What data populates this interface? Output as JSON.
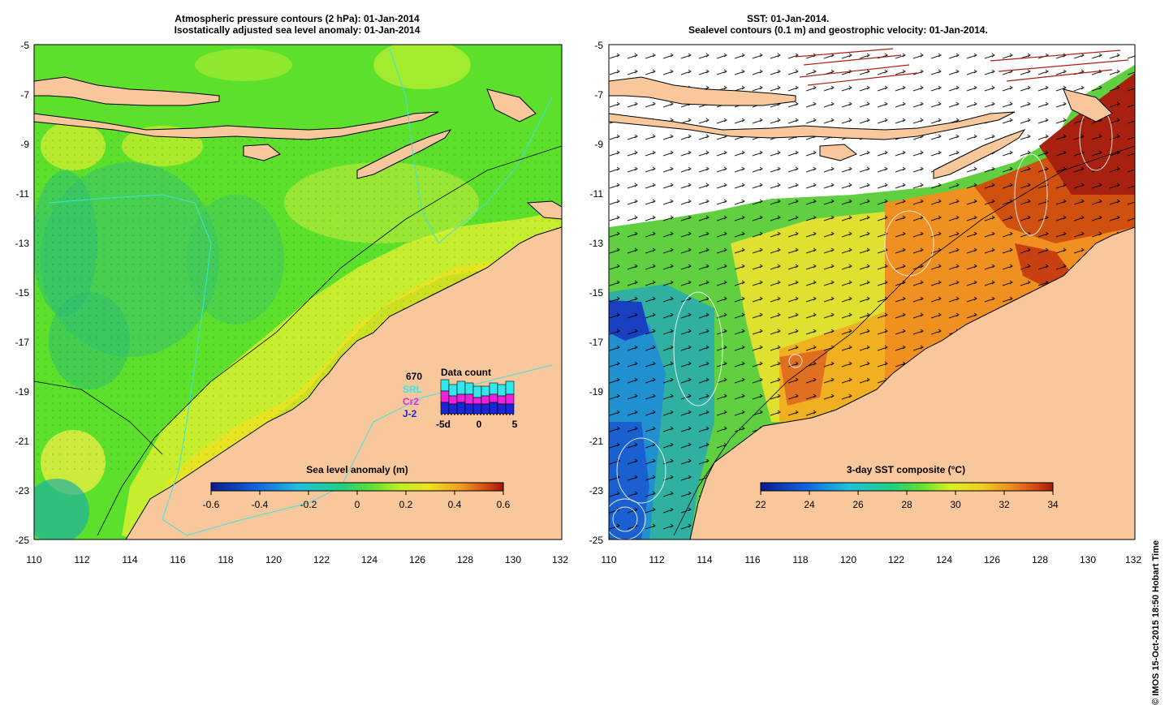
{
  "left_panel": {
    "title_line1": "Atmospheric pressure contours (2 hPa): 01-Jan-2014",
    "title_line2": "Isostatically adjusted sea level anomaly: 01-Jan-2014",
    "lat_ticks": [
      "-5",
      "-7",
      "-9",
      "-11",
      "-13",
      "-15",
      "-17",
      "-19",
      "-21",
      "-23",
      "-25"
    ],
    "lon_ticks": [
      "110",
      "112",
      "114",
      "116",
      "118",
      "120",
      "122",
      "124",
      "126",
      "128",
      "130",
      "132"
    ],
    "colorbar": {
      "title": "Sea level anomaly (m)",
      "ticks": [
        "-0.6",
        "-0.4",
        "-0.2",
        "0",
        "0.2",
        "0.4",
        "0.6"
      ]
    },
    "data_count": {
      "title": "Data count",
      "total": "670",
      "missions": [
        {
          "label": "SRL",
          "color": "#33e8ea"
        },
        {
          "label": "Cr2",
          "color": "#ee22dd"
        },
        {
          "label": "J-2",
          "color": "#1a24d8"
        }
      ],
      "x_ticks": [
        "-5d",
        "0",
        "5"
      ]
    }
  },
  "right_panel": {
    "title_line1": "SST: 01-Jan-2014.",
    "title_line2": "Sealevel contours (0.1 m) and geostrophic velocity: 01-Jan-2014.",
    "lat_ticks": [
      "-5",
      "-7",
      "-9",
      "-11",
      "-13",
      "-15",
      "-17",
      "-19",
      "-21",
      "-23",
      "-25"
    ],
    "lon_ticks": [
      "110",
      "112",
      "114",
      "116",
      "118",
      "120",
      "122",
      "124",
      "126",
      "128",
      "130",
      "132"
    ],
    "colorbar": {
      "title": "3-day SST composite (°C)",
      "ticks": [
        "22",
        "24",
        "26",
        "28",
        "30",
        "32",
        "34"
      ]
    }
  },
  "credit": "© IMOS 15-Oct-2015 18:50 Hobart Time",
  "colors": {
    "land": "#f9c79c",
    "ocean_sla": "#5ee02a",
    "coast_line": "#000000",
    "bathy_line": "#40e0e0"
  }
}
